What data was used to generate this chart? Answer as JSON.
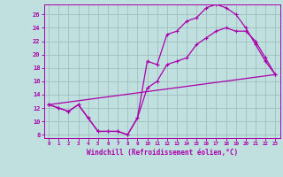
{
  "xlabel": "Windchill (Refroidissement éolien,°C)",
  "bg_color": "#c0e0e0",
  "line_color": "#aa00aa",
  "xlim": [
    -0.5,
    23.5
  ],
  "ylim": [
    7.5,
    27.5
  ],
  "xticks": [
    0,
    1,
    2,
    3,
    4,
    5,
    6,
    7,
    8,
    9,
    10,
    11,
    12,
    13,
    14,
    15,
    16,
    17,
    18,
    19,
    20,
    21,
    22,
    23
  ],
  "yticks": [
    8,
    10,
    12,
    14,
    16,
    18,
    20,
    22,
    24,
    26
  ],
  "line1_x": [
    0,
    1,
    2,
    3,
    4,
    5,
    6,
    7,
    8,
    9,
    10,
    11,
    12,
    13,
    14,
    15,
    16,
    17,
    18,
    19,
    20,
    21,
    22,
    23
  ],
  "line1_y": [
    12.5,
    12.0,
    11.5,
    12.5,
    10.5,
    8.5,
    8.5,
    8.5,
    8.0,
    10.5,
    19.0,
    18.5,
    23.0,
    23.5,
    25.0,
    25.5,
    27.0,
    27.5,
    27.0,
    26.0,
    24.0,
    21.5,
    19.0,
    17.0
  ],
  "line2_x": [
    0,
    1,
    2,
    3,
    4,
    5,
    6,
    7,
    8,
    9,
    10,
    11,
    12,
    13,
    14,
    15,
    16,
    17,
    18,
    19,
    20,
    21,
    22,
    23
  ],
  "line2_y": [
    12.5,
    12.0,
    11.5,
    12.5,
    10.5,
    8.5,
    8.5,
    8.5,
    8.0,
    10.5,
    15.0,
    16.0,
    18.5,
    19.0,
    19.5,
    21.5,
    22.5,
    23.5,
    24.0,
    23.5,
    23.5,
    22.0,
    19.5,
    17.0
  ],
  "line3_x": [
    0,
    23
  ],
  "line3_y": [
    12.5,
    17.0
  ],
  "marker": "+"
}
